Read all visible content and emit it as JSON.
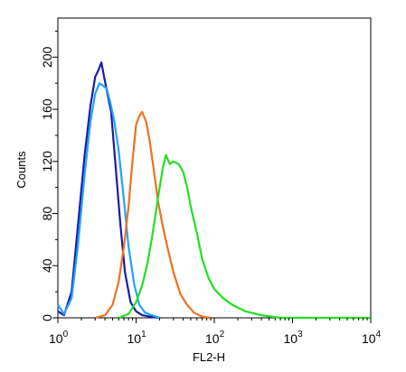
{
  "chart_data": {
    "type": "line",
    "xlabel": "FL2-H",
    "ylabel": "Counts",
    "x_scale": "log",
    "xlim": [
      1,
      10000
    ],
    "ylim": [
      0,
      230
    ],
    "x_ticks": [
      {
        "base": "10",
        "exp": "0",
        "value": 1
      },
      {
        "base": "10",
        "exp": "1",
        "value": 10
      },
      {
        "base": "10",
        "exp": "2",
        "value": 100
      },
      {
        "base": "10",
        "exp": "3",
        "value": 1000
      },
      {
        "base": "10",
        "exp": "4",
        "value": 10000
      }
    ],
    "y_ticks": [
      0,
      40,
      80,
      120,
      160,
      200
    ],
    "grid": false,
    "legend": "none",
    "series": [
      {
        "color": "#1a1aa6",
        "x": [
          1,
          1.2,
          1.5,
          1.8,
          2.2,
          2.6,
          3.0,
          3.3,
          3.6,
          3.9,
          4.3,
          4.8,
          5.5,
          6.3,
          7.2,
          8.5,
          10,
          12,
          15,
          20
        ],
        "y": [
          5,
          2,
          20,
          70,
          125,
          162,
          185,
          190,
          196,
          185,
          172,
          158,
          115,
          72,
          35,
          12,
          5,
          2,
          1,
          0
        ]
      },
      {
        "color": "#1fa3ff",
        "x": [
          1,
          1.2,
          1.5,
          1.8,
          2.2,
          2.6,
          3.0,
          3.4,
          3.8,
          4.2,
          4.7,
          5.3,
          6.0,
          7.0,
          8.0,
          9.5,
          11,
          13,
          16,
          20
        ],
        "y": [
          10,
          3,
          15,
          55,
          110,
          150,
          172,
          180,
          178,
          176,
          165,
          150,
          128,
          90,
          55,
          25,
          10,
          4,
          2,
          0
        ]
      },
      {
        "color": "#f07020",
        "x": [
          3,
          4,
          5,
          6,
          7,
          8,
          9,
          10,
          11,
          12,
          13.5,
          15,
          17,
          19,
          22,
          25,
          30,
          37,
          45,
          55,
          70,
          90
        ],
        "y": [
          0,
          2,
          10,
          28,
          55,
          85,
          120,
          148,
          155,
          158,
          150,
          135,
          112,
          90,
          70,
          55,
          35,
          18,
          10,
          4,
          1,
          0
        ]
      },
      {
        "color": "#22e022",
        "x": [
          6,
          8,
          10,
          12,
          14,
          16,
          18,
          20,
          22,
          24,
          27,
          30,
          35,
          40,
          45,
          50,
          60,
          70,
          85,
          100,
          130,
          170,
          250,
          400,
          700,
          10000
        ],
        "y": [
          0,
          3,
          12,
          25,
          42,
          62,
          82,
          100,
          115,
          125,
          118,
          120,
          118,
          112,
          100,
          85,
          65,
          45,
          30,
          22,
          15,
          10,
          5,
          2,
          0,
          0
        ]
      }
    ]
  }
}
